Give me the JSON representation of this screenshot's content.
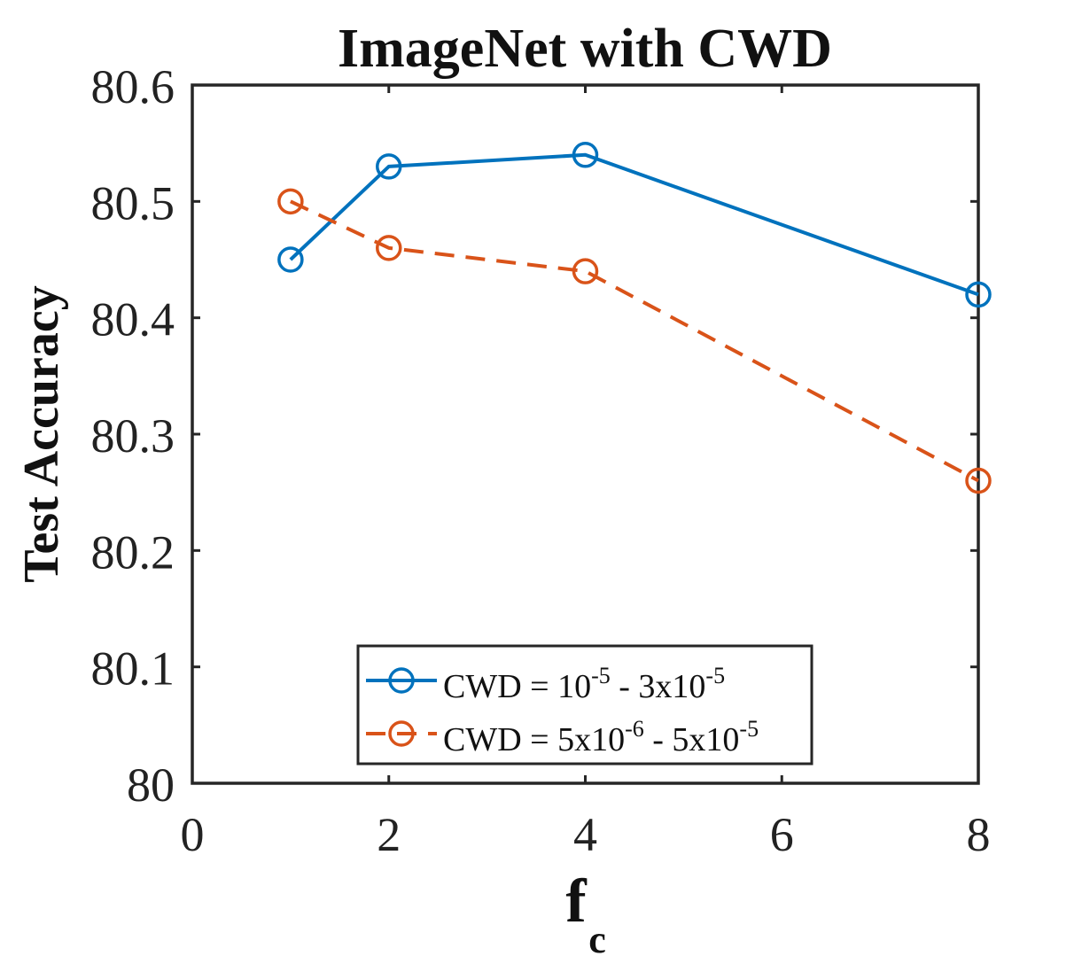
{
  "chart_data": {
    "type": "line",
    "title": "ImageNet with CWD",
    "xlabel": "f",
    "xlabel_subscript": "c",
    "ylabel": "Test Accuracy",
    "xlim": [
      0,
      8
    ],
    "ylim": [
      80,
      80.6
    ],
    "x_ticks": [
      0,
      2,
      4,
      6,
      8
    ],
    "y_ticks": [
      80,
      80.1,
      80.2,
      80.3,
      80.4,
      80.5,
      80.6
    ],
    "x_tick_labels": [
      "0",
      "2",
      "4",
      "6",
      "8"
    ],
    "y_tick_labels": [
      "80",
      "80.1",
      "80.2",
      "80.3",
      "80.4",
      "80.5",
      "80.6"
    ],
    "grid": false,
    "legend_position": "bottom-center",
    "series": [
      {
        "name": "CWD = 10-5 - 3x10-5",
        "legend_parts": [
          {
            "text": "CWD = 10"
          },
          {
            "sup": "-5"
          },
          {
            "text": " - 3x10"
          },
          {
            "sup": "-5"
          }
        ],
        "color": "#0072BD",
        "line_style": "solid",
        "marker": "circle",
        "x": [
          1,
          2,
          4,
          8
        ],
        "y": [
          80.45,
          80.53,
          80.54,
          80.42
        ]
      },
      {
        "name": "CWD = 5x10-6 - 5x10-5",
        "legend_parts": [
          {
            "text": "CWD = 5x10"
          },
          {
            "sup": "-6"
          },
          {
            "text": " - 5x10"
          },
          {
            "sup": "-5"
          }
        ],
        "color": "#D95319",
        "line_style": "dashed",
        "marker": "circle",
        "x": [
          1,
          2,
          4,
          8
        ],
        "y": [
          80.5,
          80.46,
          80.44,
          80.26
        ]
      }
    ]
  }
}
